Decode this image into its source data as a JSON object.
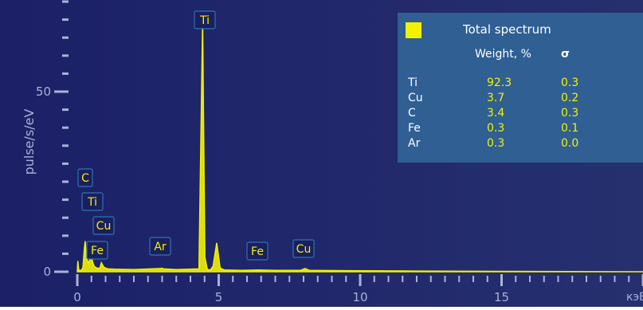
{
  "chart_data": {
    "type": "line",
    "title": "",
    "xlabel": "кэВ",
    "ylabel": "pulse/s/eV",
    "xlim": [
      0,
      20
    ],
    "ylim": [
      0,
      75
    ],
    "x_ticks": [
      "0",
      "5",
      "10",
      "15"
    ],
    "y_ticks": [
      "0",
      "50"
    ],
    "series": [
      {
        "color": "#f2f200",
        "x": [
          0.0,
          0.02,
          0.05,
          0.1,
          0.15,
          0.2,
          0.25,
          0.28,
          0.32,
          0.4,
          0.45,
          0.5,
          0.55,
          0.6,
          0.7,
          0.8,
          0.85,
          0.93,
          1.0,
          1.1,
          1.3,
          2.0,
          2.95,
          3.0,
          3.05,
          3.5,
          4.3,
          4.43,
          4.51,
          4.6,
          4.7,
          4.8,
          4.93,
          5.05,
          5.2,
          5.8,
          6.4,
          7.0,
          7.9,
          8.05,
          8.2,
          9.5,
          12.0,
          15.0,
          20.0
        ],
        "y": [
          0.0,
          3.0,
          0.5,
          0.3,
          0.5,
          1.2,
          6.5,
          8.5,
          4.0,
          2.2,
          3.8,
          4.2,
          2.5,
          1.5,
          1.0,
          1.0,
          2.5,
          1.4,
          1.0,
          0.8,
          0.7,
          0.6,
          0.9,
          1.0,
          0.8,
          0.6,
          0.8,
          70.0,
          4.0,
          0.6,
          0.5,
          1.5,
          8.0,
          1.0,
          0.5,
          0.4,
          0.5,
          0.4,
          0.4,
          0.9,
          0.4,
          0.3,
          0.2,
          0.1,
          0.0
        ]
      }
    ],
    "peak_labels": [
      {
        "label": "Ti",
        "x": 4.51
      },
      {
        "label": "C",
        "x": 0.28
      },
      {
        "label": "Ti",
        "x": 0.45
      },
      {
        "label": "Cu",
        "x": 0.93
      },
      {
        "label": "Fe",
        "x": 0.7
      },
      {
        "label": "Ar",
        "x": 2.95
      },
      {
        "label": "Fe",
        "x": 6.4
      },
      {
        "label": "Cu",
        "x": 8.05
      }
    ]
  },
  "table": {
    "legend_color": "#f2f200",
    "title": "Total spectrum",
    "col_weight": "Weight, %",
    "col_sigma": "σ",
    "rows": [
      {
        "element": "Ti",
        "weight": "92.3",
        "sigma": "0.3"
      },
      {
        "element": "Cu",
        "weight": "3.7",
        "sigma": "0.2"
      },
      {
        "element": "C",
        "weight": "3.4",
        "sigma": "0.3"
      },
      {
        "element": "Fe",
        "weight": "0.3",
        "sigma": "0.1"
      },
      {
        "element": "Ar",
        "weight": "0.3",
        "sigma": "0.0"
      }
    ]
  }
}
